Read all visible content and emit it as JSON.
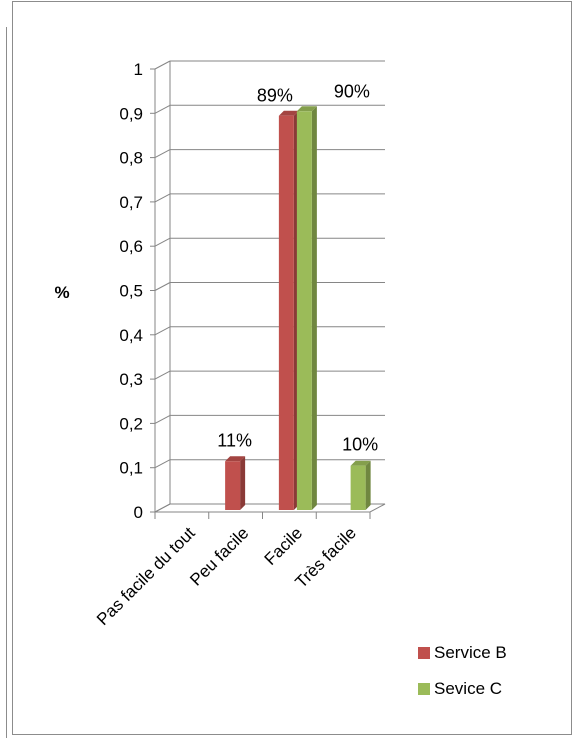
{
  "chart_data": {
    "type": "bar",
    "style": "3d-clustered-column",
    "title": "",
    "xlabel": "",
    "ylabel": "%",
    "ylim": [
      0,
      1
    ],
    "yticks": [
      "0",
      "0,1",
      "0,2",
      "0,3",
      "0,4",
      "0,5",
      "0,6",
      "0,7",
      "0,8",
      "0,9",
      "1"
    ],
    "categories": [
      "Pas facile du tout",
      "Peu facile",
      "Facile",
      "Très facile"
    ],
    "grid": true,
    "legend_position": "bottom-right",
    "series": [
      {
        "name": "Service B",
        "color": "#c0504d",
        "values": [
          null,
          0.11,
          0.89,
          null
        ],
        "labels": [
          "",
          "11%",
          "89%",
          ""
        ]
      },
      {
        "name": "Sevice C",
        "color": "#9bbb59",
        "values": [
          null,
          null,
          0.9,
          0.1
        ],
        "labels": [
          "",
          "",
          "90%",
          "10%"
        ]
      }
    ]
  }
}
